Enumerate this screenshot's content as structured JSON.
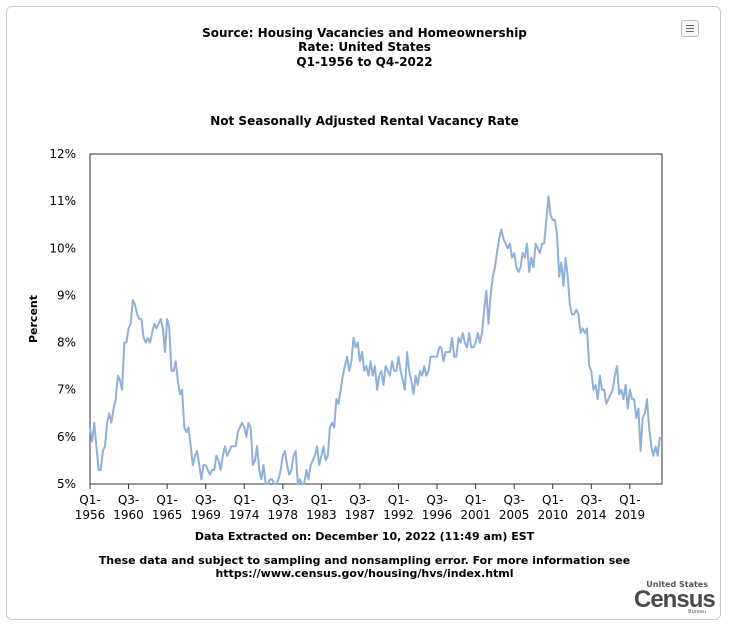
{
  "header": {
    "title_line1": "Source: Housing Vacancies and Homeownership",
    "title_line2": "Rate: United States",
    "title_line3": "Q1-1956 to Q4-2022"
  },
  "chart_data": {
    "type": "line",
    "title": "Not Seasonally Adjusted Rental Vacancy Rate",
    "ylabel": "Percent",
    "ylim": [
      5,
      12
    ],
    "y_ticks": [
      "5%",
      "6%",
      "7%",
      "8%",
      "9%",
      "10%",
      "11%",
      "12%"
    ],
    "x_ticks": [
      {
        "q": "Q1-",
        "year": "1956"
      },
      {
        "q": "Q3-",
        "year": "1960"
      },
      {
        "q": "Q1-",
        "year": "1965"
      },
      {
        "q": "Q3-",
        "year": "1969"
      },
      {
        "q": "Q1-",
        "year": "1974"
      },
      {
        "q": "Q3-",
        "year": "1978"
      },
      {
        "q": "Q1-",
        "year": "1983"
      },
      {
        "q": "Q3-",
        "year": "1987"
      },
      {
        "q": "Q1-",
        "year": "1992"
      },
      {
        "q": "Q3-",
        "year": "1996"
      },
      {
        "q": "Q1-",
        "year": "2001"
      },
      {
        "q": "Q3-",
        "year": "2005"
      },
      {
        "q": "Q1-",
        "year": "2010"
      },
      {
        "q": "Q3-",
        "year": "2014"
      },
      {
        "q": "Q1-",
        "year": "2019"
      }
    ],
    "line_color": "#8fb0d9",
    "x_start": 1956.0,
    "x_end": 2022.75,
    "series": [
      {
        "values": [
          [
            1956.0,
            6.2
          ],
          [
            1956.25,
            5.9
          ],
          [
            1956.5,
            6.3
          ],
          [
            1956.75,
            5.8
          ],
          [
            1957.0,
            5.3
          ],
          [
            1957.25,
            5.3
          ],
          [
            1957.5,
            5.7
          ],
          [
            1957.75,
            5.8
          ],
          [
            1958.0,
            6.3
          ],
          [
            1958.25,
            6.5
          ],
          [
            1958.5,
            6.3
          ],
          [
            1958.75,
            6.6
          ],
          [
            1959.0,
            6.8
          ],
          [
            1959.25,
            7.3
          ],
          [
            1959.5,
            7.2
          ],
          [
            1959.75,
            7.0
          ],
          [
            1960.0,
            8.0
          ],
          [
            1960.25,
            8.0
          ],
          [
            1960.5,
            8.3
          ],
          [
            1960.75,
            8.4
          ],
          [
            1961.0,
            8.9
          ],
          [
            1961.25,
            8.8
          ],
          [
            1961.5,
            8.6
          ],
          [
            1961.75,
            8.5
          ],
          [
            1962.0,
            8.5
          ],
          [
            1962.25,
            8.1
          ],
          [
            1962.5,
            8.0
          ],
          [
            1962.75,
            8.1
          ],
          [
            1963.0,
            8.0
          ],
          [
            1963.25,
            8.2
          ],
          [
            1963.5,
            8.4
          ],
          [
            1963.75,
            8.3
          ],
          [
            1964.0,
            8.4
          ],
          [
            1964.25,
            8.5
          ],
          [
            1964.5,
            8.3
          ],
          [
            1964.75,
            7.8
          ],
          [
            1965.0,
            8.5
          ],
          [
            1965.25,
            8.3
          ],
          [
            1965.5,
            7.4
          ],
          [
            1965.75,
            7.4
          ],
          [
            1966.0,
            7.6
          ],
          [
            1966.25,
            7.2
          ],
          [
            1966.5,
            6.9
          ],
          [
            1966.75,
            7.0
          ],
          [
            1967.0,
            6.2
          ],
          [
            1967.25,
            6.1
          ],
          [
            1967.5,
            6.2
          ],
          [
            1967.75,
            5.8
          ],
          [
            1968.0,
            5.4
          ],
          [
            1968.25,
            5.6
          ],
          [
            1968.5,
            5.7
          ],
          [
            1968.75,
            5.4
          ],
          [
            1969.0,
            5.1
          ],
          [
            1969.25,
            5.4
          ],
          [
            1969.5,
            5.4
          ],
          [
            1969.75,
            5.3
          ],
          [
            1970.0,
            5.2
          ],
          [
            1970.25,
            5.3
          ],
          [
            1970.5,
            5.3
          ],
          [
            1970.75,
            5.6
          ],
          [
            1971.0,
            5.5
          ],
          [
            1971.25,
            5.3
          ],
          [
            1971.5,
            5.6
          ],
          [
            1971.75,
            5.8
          ],
          [
            1972.0,
            5.6
          ],
          [
            1972.25,
            5.7
          ],
          [
            1972.5,
            5.8
          ],
          [
            1972.75,
            5.8
          ],
          [
            1973.0,
            5.8
          ],
          [
            1973.25,
            6.1
          ],
          [
            1973.5,
            6.2
          ],
          [
            1973.75,
            6.3
          ],
          [
            1974.0,
            6.2
          ],
          [
            1974.25,
            6.0
          ],
          [
            1974.5,
            6.3
          ],
          [
            1974.75,
            6.2
          ],
          [
            1975.0,
            5.4
          ],
          [
            1975.25,
            5.5
          ],
          [
            1975.5,
            5.8
          ],
          [
            1975.75,
            5.3
          ],
          [
            1976.0,
            5.1
          ],
          [
            1976.25,
            5.4
          ],
          [
            1976.5,
            5.0
          ],
          [
            1976.75,
            5.0
          ],
          [
            1977.0,
            5.1
          ],
          [
            1977.25,
            5.1
          ],
          [
            1977.5,
            5.0
          ],
          [
            1977.75,
            5.0
          ],
          [
            1978.0,
            5.1
          ],
          [
            1978.25,
            5.3
          ],
          [
            1978.5,
            5.6
          ],
          [
            1978.75,
            5.7
          ],
          [
            1979.0,
            5.4
          ],
          [
            1979.25,
            5.2
          ],
          [
            1979.5,
            5.3
          ],
          [
            1979.75,
            5.6
          ],
          [
            1980.0,
            5.7
          ],
          [
            1980.25,
            5.0
          ],
          [
            1980.5,
            5.1
          ],
          [
            1980.75,
            5.0
          ],
          [
            1981.0,
            5.0
          ],
          [
            1981.25,
            5.3
          ],
          [
            1981.5,
            5.1
          ],
          [
            1981.75,
            5.4
          ],
          [
            1982.0,
            5.5
          ],
          [
            1982.25,
            5.6
          ],
          [
            1982.5,
            5.8
          ],
          [
            1982.75,
            5.4
          ],
          [
            1983.0,
            5.6
          ],
          [
            1983.25,
            5.8
          ],
          [
            1983.5,
            5.5
          ],
          [
            1983.75,
            5.6
          ],
          [
            1984.0,
            6.2
          ],
          [
            1984.25,
            6.3
          ],
          [
            1984.5,
            6.2
          ],
          [
            1984.75,
            6.8
          ],
          [
            1985.0,
            6.7
          ],
          [
            1985.25,
            7.0
          ],
          [
            1985.5,
            7.3
          ],
          [
            1985.75,
            7.5
          ],
          [
            1986.0,
            7.7
          ],
          [
            1986.25,
            7.4
          ],
          [
            1986.5,
            7.6
          ],
          [
            1986.75,
            8.1
          ],
          [
            1987.0,
            7.9
          ],
          [
            1987.25,
            8.0
          ],
          [
            1987.5,
            7.6
          ],
          [
            1987.75,
            7.8
          ],
          [
            1988.0,
            7.4
          ],
          [
            1988.25,
            7.5
          ],
          [
            1988.5,
            7.3
          ],
          [
            1988.75,
            7.6
          ],
          [
            1989.0,
            7.3
          ],
          [
            1989.25,
            7.5
          ],
          [
            1989.5,
            7.0
          ],
          [
            1989.75,
            7.3
          ],
          [
            1990.0,
            7.4
          ],
          [
            1990.25,
            7.1
          ],
          [
            1990.5,
            7.5
          ],
          [
            1990.75,
            7.4
          ],
          [
            1991.0,
            7.3
          ],
          [
            1991.25,
            7.6
          ],
          [
            1991.5,
            7.4
          ],
          [
            1991.75,
            7.4
          ],
          [
            1992.0,
            7.7
          ],
          [
            1992.25,
            7.4
          ],
          [
            1992.5,
            7.2
          ],
          [
            1992.75,
            7.0
          ],
          [
            1993.0,
            7.8
          ],
          [
            1993.25,
            7.4
          ],
          [
            1993.5,
            7.2
          ],
          [
            1993.75,
            6.9
          ],
          [
            1994.0,
            7.3
          ],
          [
            1994.25,
            7.1
          ],
          [
            1994.5,
            7.4
          ],
          [
            1994.75,
            7.3
          ],
          [
            1995.0,
            7.5
          ],
          [
            1995.25,
            7.3
          ],
          [
            1995.5,
            7.4
          ],
          [
            1995.75,
            7.7
          ],
          [
            1996.0,
            7.7
          ],
          [
            1996.25,
            7.7
          ],
          [
            1996.5,
            7.7
          ],
          [
            1996.75,
            7.9
          ],
          [
            1997.0,
            7.9
          ],
          [
            1997.25,
            7.6
          ],
          [
            1997.5,
            7.8
          ],
          [
            1997.75,
            7.8
          ],
          [
            1998.0,
            7.8
          ],
          [
            1998.25,
            8.1
          ],
          [
            1998.5,
            7.7
          ],
          [
            1998.75,
            7.7
          ],
          [
            1999.0,
            8.1
          ],
          [
            1999.25,
            8.0
          ],
          [
            1999.5,
            8.2
          ],
          [
            1999.75,
            8.0
          ],
          [
            2000.0,
            7.9
          ],
          [
            2000.25,
            8.2
          ],
          [
            2000.5,
            7.9
          ],
          [
            2000.75,
            7.9
          ],
          [
            2001.0,
            8.0
          ],
          [
            2001.25,
            8.2
          ],
          [
            2001.5,
            8.0
          ],
          [
            2001.75,
            8.2
          ],
          [
            2002.0,
            8.7
          ],
          [
            2002.25,
            9.1
          ],
          [
            2002.5,
            8.4
          ],
          [
            2002.75,
            9.0
          ],
          [
            2003.0,
            9.4
          ],
          [
            2003.25,
            9.6
          ],
          [
            2003.5,
            9.9
          ],
          [
            2003.75,
            10.2
          ],
          [
            2004.0,
            10.4
          ],
          [
            2004.25,
            10.2
          ],
          [
            2004.5,
            10.1
          ],
          [
            2004.75,
            10.0
          ],
          [
            2005.0,
            10.1
          ],
          [
            2005.25,
            9.8
          ],
          [
            2005.5,
            9.9
          ],
          [
            2005.75,
            9.6
          ],
          [
            2006.0,
            9.5
          ],
          [
            2006.25,
            9.6
          ],
          [
            2006.5,
            9.9
          ],
          [
            2006.75,
            9.8
          ],
          [
            2007.0,
            10.1
          ],
          [
            2007.25,
            9.5
          ],
          [
            2007.5,
            9.8
          ],
          [
            2007.75,
            9.6
          ],
          [
            2008.0,
            10.1
          ],
          [
            2008.25,
            10.0
          ],
          [
            2008.5,
            9.9
          ],
          [
            2008.75,
            10.1
          ],
          [
            2009.0,
            10.1
          ],
          [
            2009.25,
            10.6
          ],
          [
            2009.5,
            11.1
          ],
          [
            2009.75,
            10.7
          ],
          [
            2010.0,
            10.6
          ],
          [
            2010.25,
            10.6
          ],
          [
            2010.5,
            10.3
          ],
          [
            2010.75,
            9.4
          ],
          [
            2011.0,
            9.7
          ],
          [
            2011.25,
            9.2
          ],
          [
            2011.5,
            9.8
          ],
          [
            2011.75,
            9.4
          ],
          [
            2012.0,
            8.8
          ],
          [
            2012.25,
            8.6
          ],
          [
            2012.5,
            8.6
          ],
          [
            2012.75,
            8.7
          ],
          [
            2013.0,
            8.6
          ],
          [
            2013.25,
            8.2
          ],
          [
            2013.5,
            8.3
          ],
          [
            2013.75,
            8.2
          ],
          [
            2014.0,
            8.3
          ],
          [
            2014.25,
            7.5
          ],
          [
            2014.5,
            7.4
          ],
          [
            2014.75,
            7.0
          ],
          [
            2015.0,
            7.1
          ],
          [
            2015.25,
            6.8
          ],
          [
            2015.5,
            7.3
          ],
          [
            2015.75,
            7.0
          ],
          [
            2016.0,
            7.0
          ],
          [
            2016.25,
            6.7
          ],
          [
            2016.5,
            6.8
          ],
          [
            2016.75,
            6.9
          ],
          [
            2017.0,
            7.0
          ],
          [
            2017.25,
            7.3
          ],
          [
            2017.5,
            7.5
          ],
          [
            2017.75,
            6.9
          ],
          [
            2018.0,
            7.0
          ],
          [
            2018.25,
            6.8
          ],
          [
            2018.5,
            7.1
          ],
          [
            2018.75,
            6.6
          ],
          [
            2019.0,
            7.0
          ],
          [
            2019.25,
            6.8
          ],
          [
            2019.5,
            6.8
          ],
          [
            2019.75,
            6.4
          ],
          [
            2020.0,
            6.6
          ],
          [
            2020.25,
            5.7
          ],
          [
            2020.5,
            6.4
          ],
          [
            2020.75,
            6.5
          ],
          [
            2021.0,
            6.8
          ],
          [
            2021.25,
            6.2
          ],
          [
            2021.5,
            5.8
          ],
          [
            2021.75,
            5.6
          ],
          [
            2022.0,
            5.8
          ],
          [
            2022.25,
            5.6
          ],
          [
            2022.5,
            6.0
          ]
        ]
      }
    ]
  },
  "footer": {
    "extracted": "Data Extracted on: December 10, 2022 (11:49 am) EST",
    "note_line1": "These data and subject to sampling and nonsampling error. For more information see",
    "note_line2": "https://www.census.gov/housing/hvs/index.html"
  },
  "logo": {
    "top": "United States",
    "main": "Census",
    "bottom": "Bureau"
  }
}
